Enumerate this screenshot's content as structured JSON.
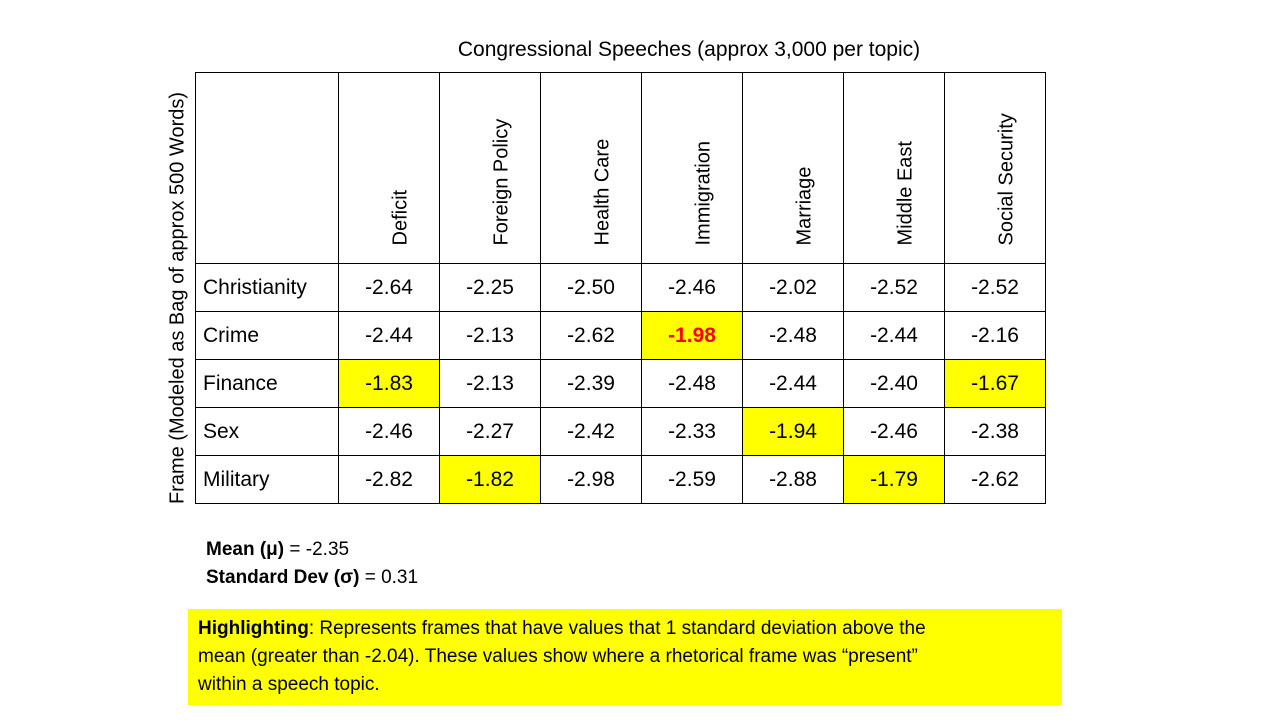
{
  "title": "Congressional Speeches (approx 3,000 per topic)",
  "side_label": "Frame  (Modeled as Bag of approx 500  Words)",
  "columns": [
    "Deficit",
    "Foreign Policy",
    "Health Care",
    "Immigration",
    "Marriage",
    "Middle East",
    "Social Security"
  ],
  "rows": [
    {
      "label": "Christianity",
      "values": [
        "-2.64",
        "-2.25",
        "-2.50",
        "-2.46",
        "-2.02",
        "-2.52",
        "-2.52"
      ]
    },
    {
      "label": "Crime",
      "values": [
        "-2.44",
        "-2.13",
        "-2.62",
        "-1.98",
        "-2.48",
        "-2.44",
        "-2.16"
      ]
    },
    {
      "label": "Finance",
      "values": [
        "-1.83",
        "-2.13",
        "-2.39",
        "-2.48",
        "-2.44",
        "-2.40",
        "-1.67"
      ]
    },
    {
      "label": "Sex",
      "values": [
        "-2.46",
        "-2.27",
        "-2.42",
        "-2.33",
        "-1.94",
        "-2.46",
        "-2.38"
      ]
    },
    {
      "label": "Military",
      "values": [
        "-2.82",
        "-1.82",
        "-2.98",
        "-2.59",
        "-2.88",
        "-1.79",
        "-2.62"
      ]
    }
  ],
  "highlight_color": "#ffff00",
  "emphasis_color": "#ff0000",
  "stats": {
    "mean_label": "Mean (μ)",
    "mean_value": " = -2.35",
    "sd_label": "Standard Dev (σ)",
    "sd_value": " = 0.31"
  },
  "note": {
    "label": "Highlighting",
    "line1": ": Represents frames that have values that 1 standard deviation above the",
    "line2": "mean (greater than -2.04). These values show where a rhetorical frame was “present”",
    "line3": "within a speech topic."
  }
}
